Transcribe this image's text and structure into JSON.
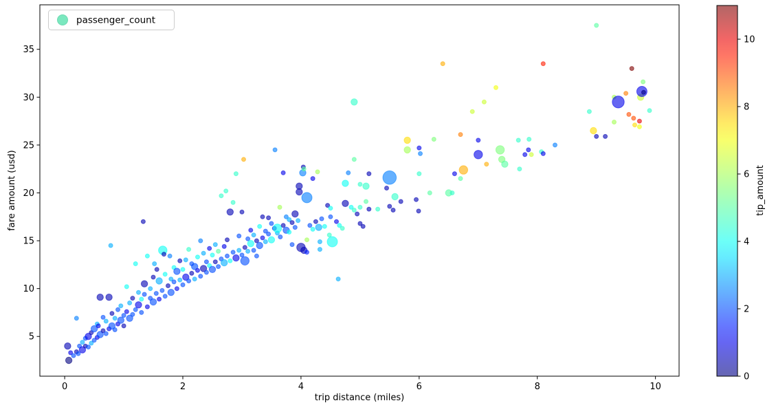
{
  "figure": {
    "background": "#ffffff"
  },
  "legend": {
    "label": "passenger_count",
    "marker_color": "#7be8bf",
    "border_color": "#cccccc"
  },
  "chart_data": {
    "type": "scatter",
    "title": "",
    "xlabel": "trip distance (miles)",
    "ylabel": "fare amount (usd)",
    "x_ticks": [
      0,
      2,
      4,
      6,
      8,
      10
    ],
    "y_ticks": [
      5,
      10,
      15,
      20,
      25,
      30,
      35
    ],
    "xlim": [
      -0.42,
      10.4
    ],
    "ylim": [
      0.85,
      39.65
    ],
    "grid": false,
    "legend_position": "upper left",
    "point_fields": [
      "trip_distance_miles",
      "fare_amount_usd",
      "passenger_count",
      "tip_amount"
    ],
    "size_field": "passenger_count",
    "color_field": "tip_amount",
    "marker_alpha": 0.6,
    "colorbar": {
      "label": "tip_amount",
      "vmin": 0,
      "vmax": 11,
      "ticks": [
        0,
        2,
        4,
        6,
        8,
        10
      ],
      "colormap": "jet",
      "stops": [
        {
          "v": 0,
          "rgb": [
            0,
            0,
            127
          ]
        },
        {
          "v": 1.2,
          "rgb": [
            0,
            0,
            255
          ]
        },
        {
          "v": 3.85,
          "rgb": [
            0,
            255,
            255
          ]
        },
        {
          "v": 5.5,
          "rgb": [
            124,
            255,
            121
          ]
        },
        {
          "v": 7.15,
          "rgb": [
            255,
            255,
            0
          ]
        },
        {
          "v": 9.8,
          "rgb": [
            255,
            0,
            0
          ]
        },
        {
          "v": 11,
          "rgb": [
            127,
            0,
            0
          ]
        }
      ]
    },
    "points": [
      [
        0.05,
        4.0,
        2,
        0.5
      ],
      [
        0.07,
        2.5,
        2,
        0
      ],
      [
        0.1,
        3.3,
        1,
        1
      ],
      [
        0.15,
        3.0,
        1,
        2
      ],
      [
        0.2,
        3.4,
        1,
        0.5
      ],
      [
        0.23,
        3.2,
        1,
        2
      ],
      [
        0.2,
        6.9,
        1,
        2.5
      ],
      [
        0.25,
        4.0,
        1,
        2
      ],
      [
        0.3,
        3.6,
        2,
        1
      ],
      [
        0.3,
        4.4,
        1,
        3
      ],
      [
        0.35,
        4.0,
        1,
        0.5
      ],
      [
        0.35,
        4.8,
        1,
        2
      ],
      [
        0.4,
        3.9,
        1,
        2
      ],
      [
        0.4,
        5.0,
        2,
        1
      ],
      [
        0.45,
        4.3,
        1,
        3
      ],
      [
        0.45,
        5.4,
        1,
        0.5
      ],
      [
        0.5,
        4.6,
        1,
        2
      ],
      [
        0.5,
        5.8,
        2,
        2
      ],
      [
        0.55,
        4.9,
        1,
        1
      ],
      [
        0.55,
        6.3,
        1,
        3
      ],
      [
        0.57,
        6.1,
        1,
        1
      ],
      [
        0.6,
        5.2,
        2,
        2
      ],
      [
        0.6,
        9.1,
        2,
        0.5
      ],
      [
        0.65,
        5.6,
        1,
        0.5
      ],
      [
        0.65,
        7.0,
        1,
        2
      ],
      [
        0.7,
        5.3,
        1,
        2
      ],
      [
        0.7,
        6.6,
        1,
        3
      ],
      [
        0.75,
        5.8,
        1,
        1
      ],
      [
        0.75,
        9.1,
        2,
        0.5
      ],
      [
        0.78,
        14.5,
        1,
        3
      ],
      [
        0.8,
        6.1,
        2,
        2
      ],
      [
        0.8,
        7.4,
        1,
        0.5
      ],
      [
        0.85,
        5.7,
        1,
        2
      ],
      [
        0.85,
        6.9,
        1,
        3
      ],
      [
        0.9,
        6.3,
        1,
        1
      ],
      [
        0.9,
        7.8,
        1,
        2
      ],
      [
        0.95,
        6.7,
        2,
        2
      ],
      [
        0.95,
        8.2,
        1,
        3
      ],
      [
        1.0,
        6.1,
        1,
        0.5
      ],
      [
        1.0,
        7.2,
        1,
        2
      ],
      [
        1.05,
        10.2,
        1,
        4
      ],
      [
        1.05,
        7.6,
        1,
        1
      ],
      [
        1.1,
        6.9,
        2,
        2
      ],
      [
        1.1,
        8.5,
        1,
        3
      ],
      [
        1.15,
        7.3,
        1,
        2
      ],
      [
        1.15,
        9.0,
        1,
        0.5
      ],
      [
        1.2,
        7.8,
        1,
        2
      ],
      [
        1.2,
        12.6,
        1,
        4
      ],
      [
        1.25,
        8.3,
        2,
        1
      ],
      [
        1.25,
        9.6,
        1,
        3
      ],
      [
        1.3,
        7.5,
        1,
        2
      ],
      [
        1.3,
        8.9,
        1,
        4
      ],
      [
        1.33,
        17.0,
        1,
        0.5
      ],
      [
        1.35,
        9.4,
        1,
        2
      ],
      [
        1.35,
        10.5,
        2,
        0.5
      ],
      [
        1.4,
        8.1,
        1,
        1
      ],
      [
        1.4,
        13.4,
        1,
        4
      ],
      [
        1.45,
        9.0,
        1,
        2
      ],
      [
        1.45,
        10.0,
        1,
        3
      ],
      [
        1.5,
        8.6,
        2,
        2
      ],
      [
        1.5,
        11.2,
        1,
        0.5
      ],
      [
        1.52,
        12.6,
        1,
        3
      ],
      [
        1.55,
        9.5,
        1,
        2
      ],
      [
        1.56,
        12.0,
        1,
        0.5
      ],
      [
        1.6,
        8.9,
        1,
        1
      ],
      [
        1.6,
        10.8,
        2,
        3
      ],
      [
        1.65,
        9.8,
        1,
        2
      ],
      [
        1.66,
        14.0,
        3,
        4
      ],
      [
        1.68,
        13.6,
        1,
        0.5
      ],
      [
        1.7,
        9.2,
        1,
        2
      ],
      [
        1.7,
        11.5,
        1,
        4
      ],
      [
        1.75,
        10.3,
        1,
        0.5
      ],
      [
        1.78,
        13.4,
        1,
        2.5
      ],
      [
        1.8,
        9.6,
        2,
        2
      ],
      [
        1.8,
        11.0,
        1,
        3
      ],
      [
        1.85,
        10.7,
        1,
        2
      ],
      [
        1.85,
        12.2,
        1,
        4
      ],
      [
        1.9,
        10.0,
        1,
        1
      ],
      [
        1.9,
        11.8,
        2,
        2
      ],
      [
        1.95,
        10.9,
        1,
        3
      ],
      [
        1.95,
        12.9,
        1,
        0.5
      ],
      [
        2.0,
        10.4,
        1,
        2
      ],
      [
        2.0,
        12.0,
        1,
        4
      ],
      [
        2.05,
        11.2,
        2,
        1
      ],
      [
        2.05,
        13.0,
        1,
        3
      ],
      [
        2.1,
        10.8,
        1,
        2
      ],
      [
        2.1,
        14.1,
        1,
        4.5
      ],
      [
        2.15,
        11.6,
        1,
        0.5
      ],
      [
        2.15,
        12.6,
        1,
        2
      ],
      [
        2.2,
        11.0,
        1,
        3
      ],
      [
        2.2,
        12.3,
        2,
        2
      ],
      [
        2.25,
        11.9,
        1,
        1
      ],
      [
        2.25,
        13.3,
        1,
        4
      ],
      [
        2.3,
        11.3,
        1,
        2
      ],
      [
        2.3,
        15.0,
        1,
        2.5
      ],
      [
        2.35,
        12.1,
        2,
        0.5
      ],
      [
        2.35,
        13.7,
        1,
        3
      ],
      [
        2.4,
        11.7,
        1,
        2
      ],
      [
        2.4,
        12.8,
        1,
        2
      ],
      [
        2.45,
        12.4,
        1,
        4
      ],
      [
        2.45,
        14.2,
        1,
        1
      ],
      [
        2.5,
        12.0,
        2,
        2
      ],
      [
        2.5,
        13.5,
        1,
        4
      ],
      [
        2.55,
        12.8,
        1,
        0.5
      ],
      [
        2.55,
        14.6,
        1,
        3
      ],
      [
        2.6,
        12.3,
        1,
        2
      ],
      [
        2.6,
        13.9,
        1,
        5
      ],
      [
        2.65,
        13.1,
        1,
        2
      ],
      [
        2.65,
        19.7,
        1,
        4.5
      ],
      [
        2.7,
        12.7,
        2,
        3
      ],
      [
        2.7,
        14.4,
        1,
        1
      ],
      [
        2.73,
        20.2,
        1,
        4.5
      ],
      [
        2.75,
        13.4,
        1,
        2
      ],
      [
        2.75,
        15.1,
        1,
        0.5
      ],
      [
        2.8,
        12.9,
        1,
        4
      ],
      [
        2.8,
        18.0,
        2,
        0.5
      ],
      [
        2.85,
        13.8,
        1,
        2
      ],
      [
        2.85,
        19.0,
        1,
        4.5
      ],
      [
        2.9,
        13.2,
        2,
        1
      ],
      [
        2.9,
        22.0,
        1,
        4.5
      ],
      [
        2.95,
        14.0,
        1,
        3
      ],
      [
        2.95,
        15.5,
        1,
        2
      ],
      [
        3.0,
        13.5,
        1,
        2
      ],
      [
        3.0,
        18.0,
        1,
        0.5
      ],
      [
        3.03,
        23.5,
        1,
        8
      ],
      [
        3.05,
        14.3,
        1,
        0.5
      ],
      [
        3.05,
        12.9,
        3,
        2
      ],
      [
        3.1,
        13.9,
        1,
        3
      ],
      [
        3.1,
        15.2,
        1,
        2
      ],
      [
        3.15,
        14.7,
        2,
        4
      ],
      [
        3.15,
        16.1,
        1,
        1
      ],
      [
        3.2,
        14.0,
        1,
        2
      ],
      [
        3.2,
        15.6,
        1,
        3
      ],
      [
        3.25,
        15.0,
        1,
        0.5
      ],
      [
        3.25,
        13.4,
        1,
        2
      ],
      [
        3.3,
        14.5,
        2,
        2
      ],
      [
        3.3,
        16.5,
        1,
        4
      ],
      [
        3.35,
        15.3,
        1,
        1
      ],
      [
        3.35,
        17.5,
        1,
        0.5
      ],
      [
        3.4,
        14.9,
        1,
        3
      ],
      [
        3.4,
        16.0,
        1,
        2
      ],
      [
        3.45,
        15.7,
        1,
        2
      ],
      [
        3.45,
        17.4,
        1,
        0.5
      ],
      [
        3.5,
        15.1,
        2,
        4
      ],
      [
        3.5,
        16.8,
        1,
        2
      ],
      [
        3.55,
        16.3,
        1,
        1
      ],
      [
        3.56,
        24.5,
        1,
        2.5
      ],
      [
        3.6,
        15.8,
        1,
        3
      ],
      [
        3.6,
        16.3,
        3,
        4
      ],
      [
        3.64,
        18.5,
        1,
        6
      ],
      [
        3.65,
        15.4,
        1,
        2
      ],
      [
        3.7,
        16.6,
        1,
        0.5
      ],
      [
        3.7,
        22.1,
        1,
        1
      ],
      [
        3.75,
        16.1,
        2,
        2
      ],
      [
        3.75,
        17.5,
        1,
        2.5
      ],
      [
        3.8,
        15.9,
        1,
        4
      ],
      [
        3.8,
        17.2,
        1,
        3
      ],
      [
        3.85,
        16.9,
        1,
        0.5
      ],
      [
        3.85,
        14.6,
        1,
        2
      ],
      [
        3.9,
        16.4,
        1,
        2
      ],
      [
        3.9,
        17.8,
        2,
        0.5
      ],
      [
        3.95,
        17.1,
        1,
        3
      ],
      [
        3.97,
        20.7,
        2,
        0.5
      ],
      [
        3.97,
        20.1,
        2,
        0.5
      ],
      [
        4.0,
        14.3,
        3,
        0.5
      ],
      [
        4.03,
        22.1,
        2,
        2.5
      ],
      [
        4.04,
        22.7,
        1,
        0.5
      ],
      [
        4.05,
        14.0,
        2,
        0.5
      ],
      [
        4.05,
        22.5,
        1,
        5
      ],
      [
        4.1,
        13.8,
        1,
        1.5
      ],
      [
        4.1,
        15.1,
        1,
        6
      ],
      [
        4.1,
        19.5,
        4,
        2.5
      ],
      [
        4.15,
        16.6,
        1,
        2
      ],
      [
        4.2,
        16.2,
        1,
        4
      ],
      [
        4.2,
        21.5,
        1,
        1
      ],
      [
        4.25,
        17.0,
        1,
        0.5
      ],
      [
        4.28,
        22.2,
        1,
        6
      ],
      [
        4.3,
        16.4,
        2,
        3
      ],
      [
        4.32,
        14.9,
        1,
        3
      ],
      [
        4.32,
        14.1,
        1,
        3
      ],
      [
        4.35,
        17.3,
        1,
        2
      ],
      [
        4.4,
        16.5,
        1,
        4
      ],
      [
        4.45,
        18.7,
        1,
        0.5
      ],
      [
        4.48,
        15.6,
        1,
        4.5
      ],
      [
        4.5,
        17.5,
        1,
        2
      ],
      [
        4.5,
        18.4,
        1,
        4
      ],
      [
        4.53,
        14.9,
        4,
        4
      ],
      [
        4.6,
        17.0,
        1,
        1
      ],
      [
        4.63,
        11.0,
        1,
        3
      ],
      [
        4.65,
        16.6,
        1,
        4
      ],
      [
        4.7,
        16.3,
        1,
        4.5
      ],
      [
        4.75,
        18.9,
        2,
        0.5
      ],
      [
        4.75,
        21.0,
        2,
        4
      ],
      [
        4.8,
        22.1,
        1,
        2.5
      ],
      [
        4.85,
        18.5,
        1,
        4
      ],
      [
        4.9,
        18.2,
        1,
        4.5
      ],
      [
        4.9,
        23.5,
        1,
        5
      ],
      [
        4.9,
        29.5,
        2,
        4.5
      ],
      [
        4.95,
        17.8,
        1,
        0.5
      ],
      [
        5.0,
        16.8,
        1,
        0.5
      ],
      [
        5.0,
        18.5,
        1,
        4.5
      ],
      [
        5.0,
        20.9,
        1,
        4.5
      ],
      [
        5.05,
        16.5,
        1,
        0.5
      ],
      [
        5.1,
        19.1,
        1,
        5
      ],
      [
        5.1,
        20.7,
        2,
        4.5
      ],
      [
        5.15,
        18.3,
        1,
        0.5
      ],
      [
        5.15,
        22.0,
        1,
        0.5
      ],
      [
        5.3,
        18.3,
        1,
        4.5
      ],
      [
        5.45,
        20.5,
        1,
        0.5
      ],
      [
        5.5,
        18.6,
        1,
        0.5
      ],
      [
        5.5,
        21.6,
        6,
        2.5
      ],
      [
        5.56,
        18.2,
        1,
        0.5
      ],
      [
        5.59,
        19.6,
        2,
        4.5
      ],
      [
        5.69,
        19.1,
        1,
        0.5
      ],
      [
        5.8,
        25.5,
        2,
        7.5
      ],
      [
        5.8,
        24.5,
        2,
        6
      ],
      [
        5.95,
        19.3,
        1,
        0.5
      ],
      [
        5.99,
        18.1,
        1,
        0.5
      ],
      [
        6.0,
        22.0,
        1,
        4.5
      ],
      [
        6.0,
        24.7,
        1,
        1
      ],
      [
        6.02,
        24.1,
        1,
        2.5
      ],
      [
        6.18,
        20.0,
        1,
        5
      ],
      [
        6.25,
        25.6,
        1,
        5.5
      ],
      [
        6.4,
        33.5,
        1,
        8
      ],
      [
        6.5,
        20.0,
        2,
        5
      ],
      [
        6.56,
        20.0,
        1,
        4.5
      ],
      [
        6.6,
        22.0,
        1,
        1
      ],
      [
        6.7,
        21.5,
        1,
        5
      ],
      [
        6.7,
        26.1,
        1,
        8.5
      ],
      [
        6.75,
        22.4,
        3,
        8
      ],
      [
        6.9,
        28.5,
        1,
        6.5
      ],
      [
        7.0,
        24.0,
        3,
        1
      ],
      [
        7.0,
        25.5,
        1,
        1
      ],
      [
        7.1,
        29.5,
        1,
        6.5
      ],
      [
        7.14,
        23.0,
        1,
        8
      ],
      [
        7.3,
        31.0,
        1,
        7
      ],
      [
        7.37,
        24.5,
        3,
        5.5
      ],
      [
        7.4,
        23.5,
        2,
        5.5
      ],
      [
        7.45,
        23.0,
        2,
        5
      ],
      [
        7.68,
        25.5,
        1,
        4.5
      ],
      [
        7.7,
        22.5,
        1,
        4.5
      ],
      [
        7.79,
        24.0,
        1,
        1
      ],
      [
        7.85,
        24.5,
        1,
        1
      ],
      [
        7.86,
        25.6,
        1,
        4.5
      ],
      [
        7.9,
        24.0,
        1,
        6.5
      ],
      [
        8.07,
        24.3,
        1,
        4.5
      ],
      [
        8.1,
        24.1,
        1,
        1
      ],
      [
        8.1,
        33.5,
        1,
        9.5
      ],
      [
        8.3,
        25.0,
        1,
        2.5
      ],
      [
        8.88,
        28.5,
        1,
        4.5
      ],
      [
        8.95,
        26.5,
        2,
        7.5
      ],
      [
        9.0,
        25.9,
        1,
        0.5
      ],
      [
        9.15,
        25.9,
        1,
        0.5
      ],
      [
        9.0,
        37.5,
        1,
        5
      ],
      [
        9.3,
        30.0,
        1,
        6
      ],
      [
        9.3,
        27.4,
        1,
        6
      ],
      [
        9.37,
        29.5,
        5,
        1
      ],
      [
        9.5,
        30.4,
        1,
        8.5
      ],
      [
        9.55,
        28.2,
        1,
        9
      ],
      [
        9.6,
        33.0,
        1,
        11
      ],
      [
        9.63,
        27.8,
        1,
        9
      ],
      [
        9.73,
        27.5,
        1,
        10
      ],
      [
        9.65,
        27.1,
        1,
        7.5
      ],
      [
        9.73,
        26.9,
        1,
        7
      ],
      [
        9.75,
        30.0,
        2,
        6.5
      ],
      [
        9.77,
        30.6,
        4,
        1
      ],
      [
        9.8,
        30.5,
        1,
        0
      ],
      [
        9.79,
        31.6,
        1,
        5.5
      ],
      [
        9.9,
        28.6,
        1,
        4.5
      ]
    ]
  }
}
